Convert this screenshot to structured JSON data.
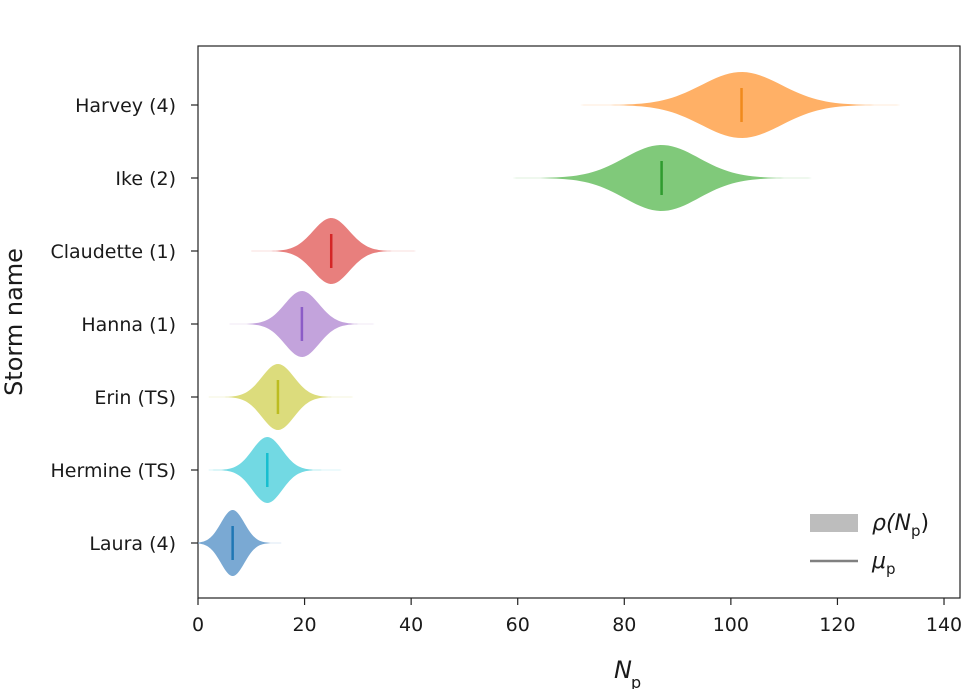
{
  "chart_data": {
    "type": "violin",
    "xlabel": "N",
    "xlabel_sub": "p",
    "ylabel": "Storm name",
    "xlim": [
      0,
      143
    ],
    "xticks": [
      0,
      20,
      40,
      60,
      80,
      100,
      120,
      140
    ],
    "grid": false,
    "legend": {
      "placement": "bottom-right",
      "items": [
        {
          "symbol": "band",
          "text_main": "ρ(N",
          "text_sub": "p",
          "text_end": ")",
          "color": "#bdbdbd"
        },
        {
          "symbol": "line",
          "text_main": "μ",
          "text_sub": "p",
          "text_end": "",
          "color": "#808080"
        }
      ]
    },
    "series": [
      {
        "name": "Harvey (4)",
        "color": "#ffb066",
        "median_color": "#f08a1c",
        "mean": 102,
        "min": 70,
        "max": 136,
        "sd": 7.5
      },
      {
        "name": "Ike (2)",
        "color": "#80c97a",
        "median_color": "#2f9b2f",
        "mean": 87,
        "min": 59,
        "max": 119,
        "sd": 7.0
      },
      {
        "name": "Claudette (1)",
        "color": "#e87f7d",
        "median_color": "#d42626",
        "mean": 25,
        "min": 10,
        "max": 43,
        "sd": 3.4
      },
      {
        "name": "Hanna (1)",
        "color": "#c3a3dc",
        "median_color": "#8b5cc7",
        "mean": 19.5,
        "min": 5,
        "max": 35,
        "sd": 3.2
      },
      {
        "name": "Erin (TS)",
        "color": "#dcdc7c",
        "median_color": "#bcbc20",
        "mean": 15,
        "min": 2,
        "max": 31,
        "sd": 3.0
      },
      {
        "name": "Hermine (TS)",
        "color": "#72d9e3",
        "median_color": "#17becf",
        "mean": 13,
        "min": 2,
        "max": 29,
        "sd": 2.8
      },
      {
        "name": "Laura (4)",
        "color": "#7aa9d3",
        "median_color": "#1f77b4",
        "mean": 6.5,
        "min": 0,
        "max": 17,
        "sd": 2.2
      }
    ]
  }
}
